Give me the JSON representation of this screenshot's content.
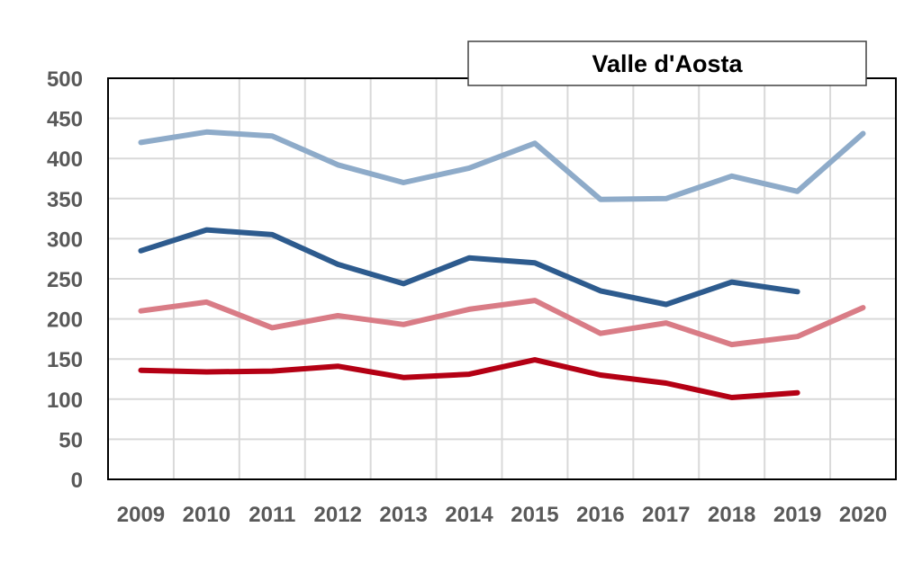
{
  "chart_data": {
    "type": "line",
    "title": "Valle d'Aosta",
    "xlabel": "",
    "ylabel": "",
    "x": [
      "2009",
      "2010",
      "2011",
      "2012",
      "2013",
      "2014",
      "2015",
      "2016",
      "2017",
      "2018",
      "2019",
      "2020"
    ],
    "ylim": [
      0,
      500
    ],
    "yticks": [
      0,
      50,
      100,
      150,
      200,
      250,
      300,
      350,
      400,
      450,
      500
    ],
    "grid": true,
    "legend": "none",
    "series": [
      {
        "color": "#8eabc9",
        "values": [
          420,
          433,
          428,
          392,
          370,
          388,
          419,
          349,
          350,
          378,
          359,
          431
        ]
      },
      {
        "color": "#2d5b8e",
        "values": [
          285,
          311,
          305,
          268,
          244,
          276,
          270,
          235,
          218,
          246,
          234,
          null
        ]
      },
      {
        "color": "#d97c86",
        "values": [
          210,
          221,
          189,
          204,
          193,
          212,
          223,
          182,
          195,
          168,
          178,
          214
        ]
      },
      {
        "color": "#b40014",
        "values": [
          136,
          134,
          135,
          141,
          127,
          131,
          149,
          130,
          120,
          102,
          108,
          null
        ]
      }
    ]
  }
}
